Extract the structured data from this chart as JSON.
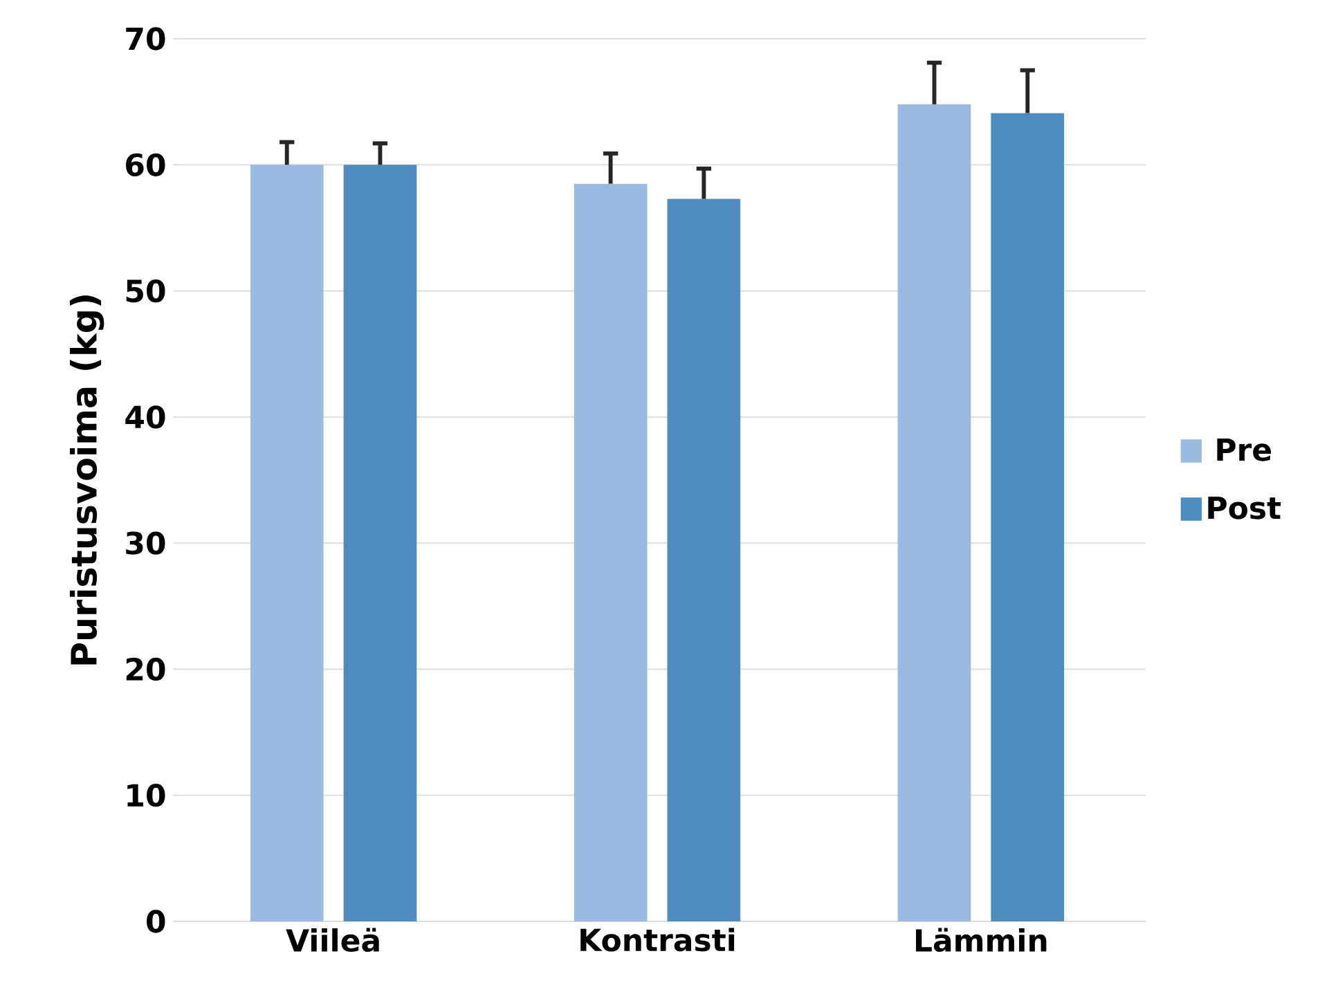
{
  "chart_data": {
    "type": "bar",
    "ylabel": "Puristusvoima (kg)",
    "categories": [
      "Viileä",
      "Kontrasti",
      "Lämmin"
    ],
    "series": [
      {
        "name": "Pre",
        "color": "#9bbae0",
        "values": [
          60,
          58.5,
          64.8
        ],
        "errors": [
          [
            60,
            61.8
          ],
          [
            58.5,
            60.9
          ],
          [
            64.8,
            68.1
          ]
        ]
      },
      {
        "name": "Post",
        "color": "#4f8bbf",
        "values": [
          60,
          57.3,
          64.1
        ],
        "errors": [
          [
            60,
            61.7
          ],
          [
            57.3,
            59.7
          ],
          [
            64.1,
            67.5
          ]
        ]
      }
    ],
    "ylim": [
      0,
      70
    ],
    "yticks": [
      0,
      10,
      20,
      30,
      40,
      50,
      60,
      70
    ],
    "grid": "y",
    "legend": "right"
  }
}
